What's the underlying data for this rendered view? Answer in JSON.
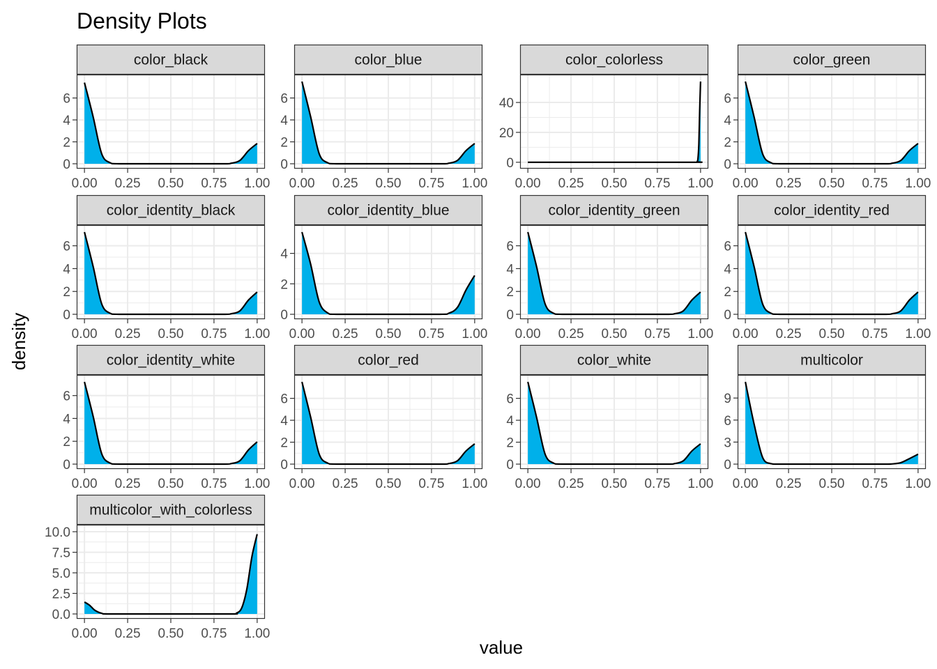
{
  "title": "Density Plots",
  "xlabel": "value",
  "ylabel": "density",
  "colors": {
    "fill": "#00B0EA",
    "line": "#000000",
    "strip": "#D9D9D9",
    "border": "#333333",
    "grid": "#EBEBEB"
  },
  "chart_data": {
    "type": "area",
    "facet_layout": "4 columns, 4 rows, fixed x scale, free y scales",
    "grid": true,
    "x_ticks": [
      "0.00",
      "0.25",
      "0.50",
      "0.75",
      "1.00"
    ],
    "xlim": [
      0,
      1
    ],
    "panels": [
      {
        "label": "color_black",
        "ylim": [
          0,
          7.5
        ],
        "y_ticks": [
          0,
          2,
          4,
          6
        ],
        "y_tick_labels": [
          "0",
          "2",
          "4",
          "6"
        ],
        "x": [
          0.0,
          0.05,
          0.1,
          0.15,
          0.2,
          0.5,
          0.8,
          0.85,
          0.9,
          0.95,
          1.0
        ],
        "y": [
          7.4,
          4.3,
          0.9,
          0.08,
          0.0,
          0.0,
          0.0,
          0.05,
          0.3,
          1.2,
          1.85
        ]
      },
      {
        "label": "color_blue",
        "ylim": [
          0,
          7.5
        ],
        "y_ticks": [
          0,
          2,
          4,
          6
        ],
        "y_tick_labels": [
          "0",
          "2",
          "4",
          "6"
        ],
        "x": [
          0.0,
          0.05,
          0.1,
          0.15,
          0.2,
          0.5,
          0.8,
          0.85,
          0.9,
          0.95,
          1.0
        ],
        "y": [
          7.5,
          4.3,
          0.9,
          0.08,
          0.0,
          0.0,
          0.0,
          0.05,
          0.3,
          1.2,
          1.85
        ]
      },
      {
        "label": "color_colorless",
        "ylim": [
          -1,
          54
        ],
        "y_ticks": [
          0,
          20,
          40
        ],
        "y_tick_labels": [
          "0",
          "20",
          "40"
        ],
        "x": [
          0.0,
          0.5,
          0.97,
          0.98,
          0.985,
          0.99,
          0.995,
          1.0
        ],
        "y": [
          0.0,
          0.0,
          0.0,
          0.4,
          2.5,
          12,
          35,
          54
        ]
      },
      {
        "label": "color_green",
        "ylim": [
          0,
          7.5
        ],
        "y_ticks": [
          0,
          2,
          4,
          6
        ],
        "y_tick_labels": [
          "0",
          "2",
          "4",
          "6"
        ],
        "x": [
          0.0,
          0.05,
          0.1,
          0.15,
          0.2,
          0.5,
          0.8,
          0.85,
          0.9,
          0.95,
          1.0
        ],
        "y": [
          7.5,
          4.3,
          0.9,
          0.08,
          0.0,
          0.0,
          0.0,
          0.05,
          0.3,
          1.2,
          1.85
        ]
      },
      {
        "label": "color_identity_black",
        "ylim": [
          0,
          7.2
        ],
        "y_ticks": [
          0,
          2,
          4,
          6
        ],
        "y_tick_labels": [
          "0",
          "2",
          "4",
          "6"
        ],
        "x": [
          0.0,
          0.05,
          0.1,
          0.15,
          0.2,
          0.5,
          0.8,
          0.85,
          0.9,
          0.95,
          1.0
        ],
        "y": [
          7.2,
          4.2,
          0.9,
          0.08,
          0.0,
          0.0,
          0.0,
          0.05,
          0.3,
          1.25,
          1.95
        ]
      },
      {
        "label": "color_identity_blue",
        "ylim": [
          0,
          5.4
        ],
        "y_ticks": [
          0,
          2,
          4
        ],
        "y_tick_labels": [
          "0",
          "2",
          "4"
        ],
        "x": [
          0.0,
          0.05,
          0.1,
          0.15,
          0.2,
          0.5,
          0.8,
          0.85,
          0.9,
          0.95,
          1.0
        ],
        "y": [
          5.4,
          3.3,
          0.8,
          0.08,
          0.0,
          0.0,
          0.0,
          0.07,
          0.45,
          1.6,
          2.55
        ]
      },
      {
        "label": "color_identity_green",
        "ylim": [
          0,
          7.2
        ],
        "y_ticks": [
          0,
          2,
          4,
          6
        ],
        "y_tick_labels": [
          "0",
          "2",
          "4",
          "6"
        ],
        "x": [
          0.0,
          0.05,
          0.1,
          0.15,
          0.2,
          0.5,
          0.8,
          0.85,
          0.9,
          0.95,
          1.0
        ],
        "y": [
          7.2,
          4.2,
          0.9,
          0.08,
          0.0,
          0.0,
          0.0,
          0.05,
          0.3,
          1.25,
          1.95
        ]
      },
      {
        "label": "color_identity_red",
        "ylim": [
          0,
          7.2
        ],
        "y_ticks": [
          0,
          2,
          4,
          6
        ],
        "y_tick_labels": [
          "0",
          "2",
          "4",
          "6"
        ],
        "x": [
          0.0,
          0.05,
          0.1,
          0.15,
          0.2,
          0.5,
          0.8,
          0.85,
          0.9,
          0.95,
          1.0
        ],
        "y": [
          7.2,
          4.2,
          0.9,
          0.08,
          0.0,
          0.0,
          0.0,
          0.05,
          0.3,
          1.25,
          1.95
        ]
      },
      {
        "label": "color_identity_white",
        "ylim": [
          0,
          7.2
        ],
        "y_ticks": [
          0,
          2,
          4,
          6
        ],
        "y_tick_labels": [
          "0",
          "2",
          "4",
          "6"
        ],
        "x": [
          0.0,
          0.05,
          0.1,
          0.15,
          0.2,
          0.5,
          0.8,
          0.85,
          0.9,
          0.95,
          1.0
        ],
        "y": [
          7.2,
          4.2,
          0.9,
          0.08,
          0.0,
          0.0,
          0.0,
          0.05,
          0.3,
          1.25,
          1.95
        ]
      },
      {
        "label": "color_red",
        "ylim": [
          0,
          7.5
        ],
        "y_ticks": [
          0,
          2,
          4,
          6
        ],
        "y_tick_labels": [
          "0",
          "2",
          "4",
          "6"
        ],
        "x": [
          0.0,
          0.05,
          0.1,
          0.15,
          0.2,
          0.5,
          0.8,
          0.85,
          0.9,
          0.95,
          1.0
        ],
        "y": [
          7.5,
          4.3,
          0.9,
          0.08,
          0.0,
          0.0,
          0.0,
          0.05,
          0.3,
          1.2,
          1.85
        ]
      },
      {
        "label": "color_white",
        "ylim": [
          0,
          7.5
        ],
        "y_ticks": [
          0,
          2,
          4,
          6
        ],
        "y_tick_labels": [
          "0",
          "2",
          "4",
          "6"
        ],
        "x": [
          0.0,
          0.05,
          0.1,
          0.15,
          0.2,
          0.5,
          0.8,
          0.85,
          0.9,
          0.95,
          1.0
        ],
        "y": [
          7.5,
          4.3,
          0.9,
          0.08,
          0.0,
          0.0,
          0.0,
          0.05,
          0.3,
          1.2,
          1.85
        ]
      },
      {
        "label": "multicolor",
        "ylim": [
          0,
          11.2
        ],
        "y_ticks": [
          0,
          3,
          6,
          9
        ],
        "y_tick_labels": [
          "0",
          "3",
          "6",
          "9"
        ],
        "x": [
          0.0,
          0.05,
          0.1,
          0.15,
          0.2,
          0.5,
          0.8,
          0.85,
          0.9,
          0.95,
          1.0
        ],
        "y": [
          11.2,
          5.5,
          0.9,
          0.05,
          0.0,
          0.0,
          0.0,
          0.03,
          0.2,
          0.75,
          1.35
        ]
      },
      {
        "label": "multicolor_with_colorless",
        "ylim": [
          0,
          10.0
        ],
        "y_ticks": [
          0,
          2.5,
          5,
          7.5,
          10
        ],
        "y_tick_labels": [
          "0.0",
          "2.5",
          "5.0",
          "7.5",
          "10.0"
        ],
        "x": [
          0.0,
          0.03,
          0.06,
          0.1,
          0.15,
          0.5,
          0.85,
          0.88,
          0.91,
          0.94,
          0.97,
          1.0
        ],
        "y": [
          1.45,
          1.05,
          0.45,
          0.08,
          0.0,
          0.0,
          0.0,
          0.1,
          0.7,
          3.0,
          7.0,
          9.7
        ]
      }
    ]
  }
}
